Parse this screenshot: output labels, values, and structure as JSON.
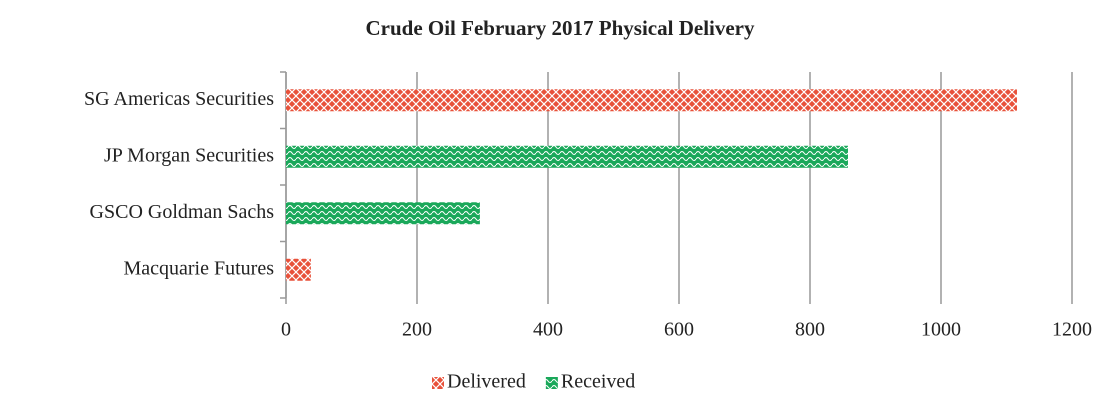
{
  "chart_data": {
    "type": "hbar",
    "title": "Crude Oil February 2017 Physical Delivery",
    "categories": [
      "SG Americas Securities",
      "JP Morgan Securities",
      "GSCO Goldman Sachs",
      "Macquarie Futures"
    ],
    "series": [
      {
        "name": "Delivered",
        "color": "#e8513a",
        "values": [
          1116,
          null,
          null,
          38
        ]
      },
      {
        "name": "Received",
        "color": "#1aa85a",
        "values": [
          null,
          858,
          296,
          null
        ]
      }
    ],
    "xlim": [
      0,
      1200
    ],
    "xticks": [
      0,
      200,
      400,
      600,
      800,
      1000,
      1200
    ],
    "grid": true,
    "legend": "bottom"
  }
}
